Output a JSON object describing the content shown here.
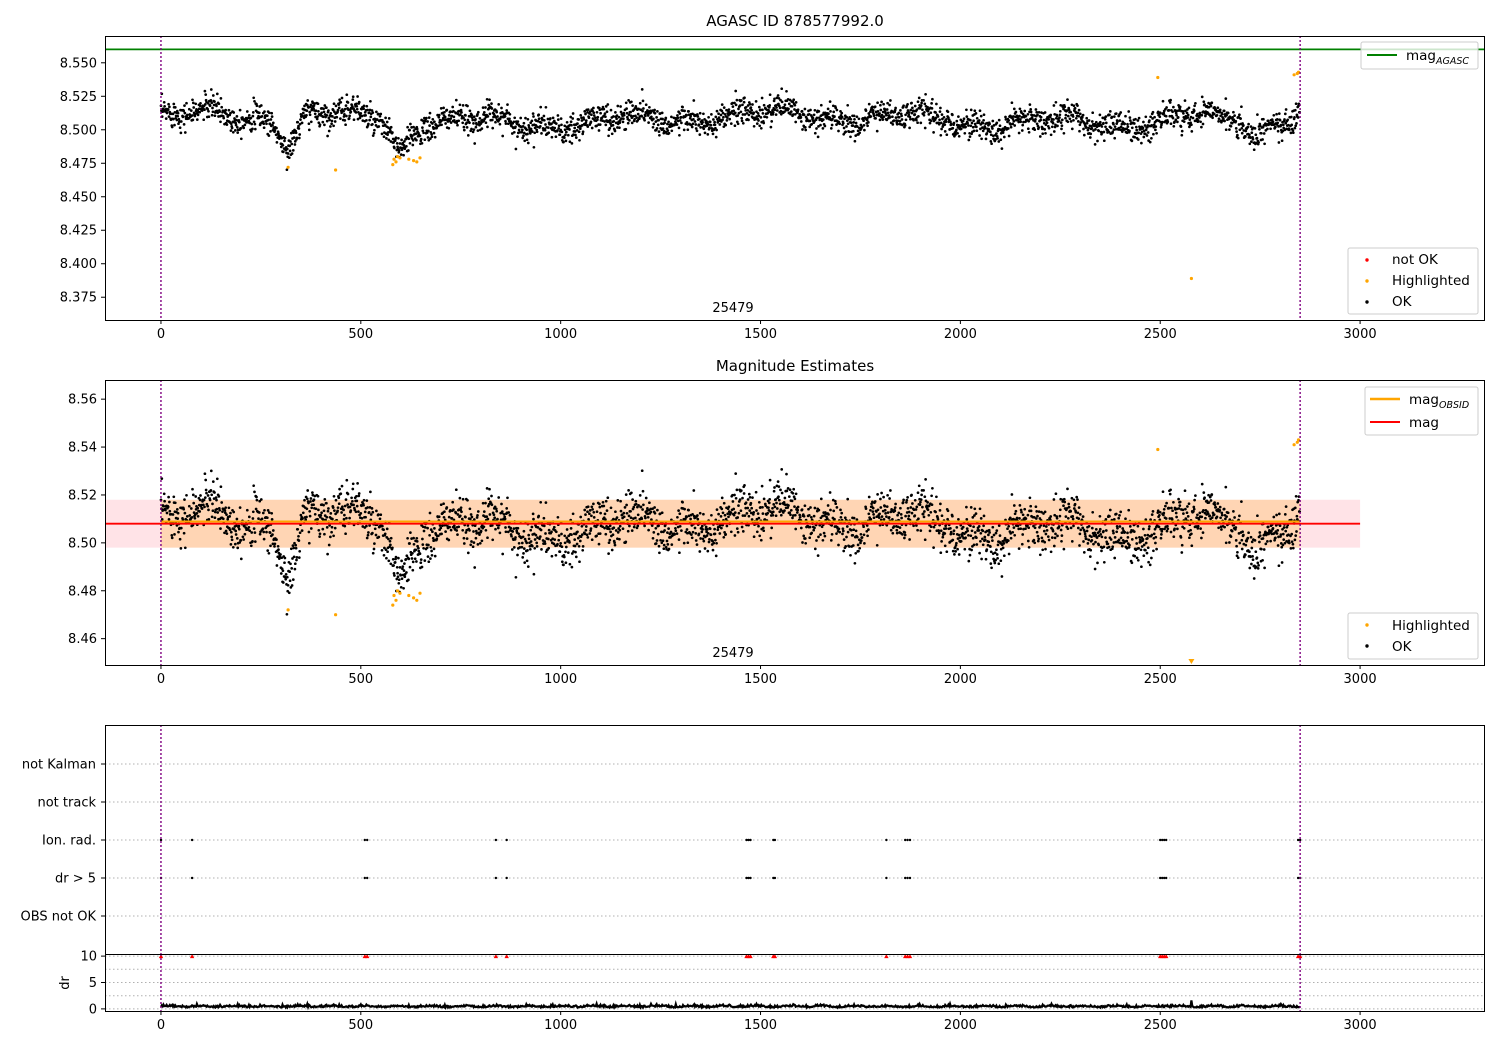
{
  "figure": {
    "width": 1500,
    "height": 1050,
    "shared_x": {
      "min": -140,
      "max": 3310,
      "ticks": [
        0,
        500,
        1000,
        1500,
        2000,
        2500,
        3000
      ]
    },
    "obsid_bounds": [
      0,
      2850
    ],
    "obsid_label": "25479"
  },
  "chart_data": [
    {
      "type": "scatter",
      "panel": "top",
      "title": "AGASC ID 878577992.0",
      "ylim": [
        8.358,
        8.57
      ],
      "yticks": [
        8.375,
        8.4,
        8.425,
        8.45,
        8.475,
        8.5,
        8.525,
        8.55
      ],
      "ytick_labels": [
        "8.375",
        "8.400",
        "8.425",
        "8.450",
        "8.475",
        "8.500",
        "8.525",
        "8.550"
      ],
      "reference_lines": [
        {
          "name": "mag",
          "subscript": "AGASC",
          "y": 8.56,
          "color": "#008000"
        }
      ],
      "legends": [
        {
          "position": "top-right",
          "entries": [
            {
              "kind": "line",
              "label": "mag",
              "subscript": "AGASC",
              "color": "#008000"
            }
          ]
        },
        {
          "position": "bottom-right",
          "entries": [
            {
              "kind": "point",
              "label": "not OK",
              "color": "#ff0000"
            },
            {
              "kind": "point",
              "label": "Highlighted",
              "color": "#ffa500"
            },
            {
              "kind": "point",
              "label": "OK",
              "color": "#000000"
            }
          ]
        }
      ],
      "series": [
        {
          "name": "OK",
          "color": "#000000",
          "x_range": [
            0,
            2850
          ],
          "n_points": 2850,
          "baseline": 8.508,
          "spread": 0.009,
          "dips": [
            {
              "x": 320,
              "depth": 0.02
            },
            {
              "x": 600,
              "depth": 0.022
            },
            {
              "x": 2740,
              "depth": 0.015
            }
          ]
        },
        {
          "name": "Highlighted",
          "color": "#ffa500",
          "points": [
            [
              318,
              8.472
            ],
            [
              437,
              8.47
            ],
            [
              580,
              8.474
            ],
            [
              583,
              8.478
            ],
            [
              588,
              8.476
            ],
            [
              592,
              8.48
            ],
            [
              598,
              8.479
            ],
            [
              620,
              8.478
            ],
            [
              632,
              8.477
            ],
            [
              640,
              8.476
            ],
            [
              648,
              8.479
            ],
            [
              2494,
              8.539
            ],
            [
              2578,
              8.389
            ],
            [
              2835,
              8.541
            ],
            [
              2843,
              8.542
            ],
            [
              2846,
              8.543
            ]
          ]
        }
      ]
    },
    {
      "type": "scatter",
      "panel": "middle",
      "title": "Magnitude Estimates",
      "ylim": [
        8.449,
        8.568
      ],
      "yticks": [
        8.46,
        8.48,
        8.5,
        8.52,
        8.54,
        8.56
      ],
      "ytick_labels": [
        "8.46",
        "8.48",
        "8.50",
        "8.52",
        "8.54",
        "8.56"
      ],
      "bands": [
        {
          "x": [
            -140,
            3000
          ],
          "y": [
            8.498,
            8.518
          ],
          "color": "#ffb6c1"
        },
        {
          "x": [
            0,
            2850
          ],
          "y": [
            8.498,
            8.518
          ],
          "color": "#ffa500"
        }
      ],
      "reference_lines": [
        {
          "name": "mag",
          "x": [
            -140,
            3000
          ],
          "y": 8.508,
          "color": "#ff0000"
        },
        {
          "name": "mag",
          "subscript": "OBSID",
          "x": [
            0,
            2850
          ],
          "y": 8.5083,
          "color": "#ffa500"
        }
      ],
      "legends": [
        {
          "position": "top-right",
          "entries": [
            {
              "kind": "line",
              "label": "mag",
              "subscript": "OBSID",
              "color": "#ffa500"
            },
            {
              "kind": "line",
              "label": "mag",
              "color": "#ff0000"
            }
          ]
        },
        {
          "position": "bottom-right",
          "entries": [
            {
              "kind": "point",
              "label": "Highlighted",
              "color": "#ffa500"
            },
            {
              "kind": "point",
              "label": "OK",
              "color": "#000000"
            }
          ]
        }
      ],
      "series": [
        {
          "name": "OK",
          "color": "#000000",
          "same_as_panel": "top"
        },
        {
          "name": "Highlighted",
          "color": "#ffa500",
          "same_as_panel": "top",
          "clipped_marker": [
            2578,
            8.45
          ]
        }
      ]
    },
    {
      "type": "scatter",
      "panel": "flags",
      "categories": [
        "not Kalman",
        "not track",
        "Ion. rad.",
        "dr > 5",
        "OBS not OK"
      ],
      "grid": true,
      "series": [
        {
          "name": "Ion. rad.",
          "color": "#000000",
          "x": [
            0,
            78,
            510,
            516,
            838,
            865,
            1465,
            1470,
            1475,
            1532,
            1536,
            1815,
            1862,
            1868,
            1874,
            2500,
            2505,
            2510,
            2515,
            2845,
            2850
          ]
        },
        {
          "name": "dr > 5",
          "color": "#000000",
          "x": [
            0,
            78,
            510,
            516,
            838,
            865,
            1465,
            1470,
            1475,
            1532,
            1536,
            1815,
            1862,
            1868,
            1874,
            2500,
            2505,
            2510,
            2515,
            2845,
            2850
          ]
        }
      ]
    },
    {
      "type": "line",
      "panel": "dr",
      "ylabel": "dr",
      "ylim": [
        -0.4,
        10.4
      ],
      "yticks": [
        0,
        5,
        10
      ],
      "ytick_labels": [
        "0",
        "5",
        "10"
      ],
      "clip_value": 10,
      "series": [
        {
          "name": "dr",
          "color": "#000000",
          "x_range": [
            0,
            2850
          ],
          "baseline": 0.35,
          "spread": 0.3,
          "spikes": [
            [
              2578,
              1.6
            ]
          ]
        },
        {
          "name": "dr clipped",
          "color": "#ff0000",
          "x": [
            0,
            78,
            510,
            516,
            838,
            865,
            1465,
            1470,
            1475,
            1532,
            1536,
            1815,
            1862,
            1868,
            1874,
            2500,
            2505,
            2510,
            2515,
            2845,
            2850
          ],
          "y": 10
        }
      ]
    }
  ]
}
